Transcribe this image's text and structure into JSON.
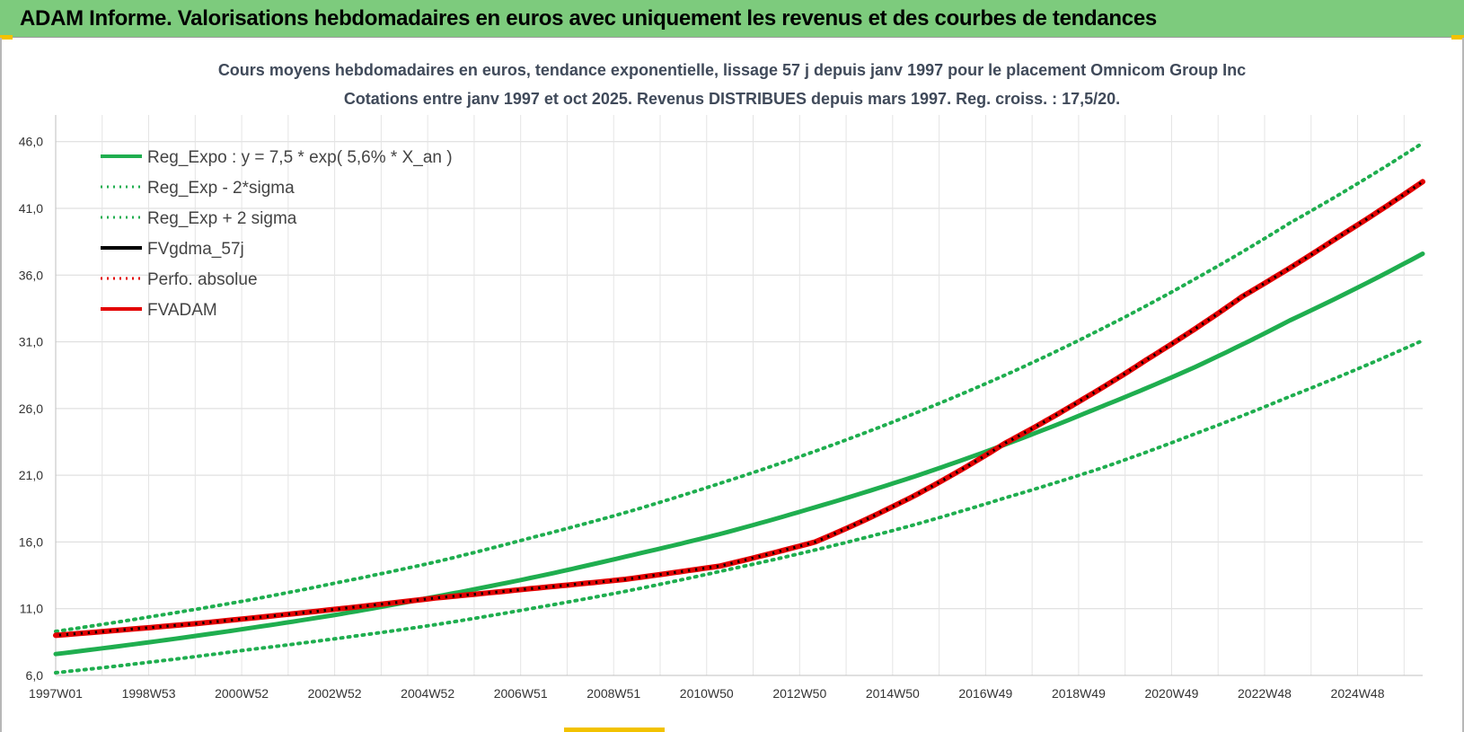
{
  "header": {
    "title": "ADAM Informe. Valorisations hebdomadaires en euros avec uniquement les revenus et des courbes de tendances"
  },
  "chart_data": {
    "type": "line",
    "title": "Cours moyens hebdomadaires en euros, tendance exponentielle, lissage 57 j depuis janv 1997 pour le placement Omnicom Group Inc",
    "subtitle": "Cotations entre janv 1997 et oct 2025. Revenus DISTRIBUES depuis mars 1997.  Reg. croiss. : 17,5/20.",
    "xlabel": "",
    "ylabel": "",
    "x_tick_labels": [
      "1997W01",
      "1998W53",
      "2000W52",
      "2002W52",
      "2004W52",
      "2006W51",
      "2008W51",
      "2010W50",
      "2012W50",
      "2014W50",
      "2016W49",
      "2018W49",
      "2020W49",
      "2022W48",
      "2024W48"
    ],
    "x_range": [
      1997.0,
      2025.8
    ],
    "ylim": [
      6.0,
      48.0
    ],
    "y_ticks": [
      6.0,
      11.0,
      16.0,
      21.0,
      26.0,
      31.0,
      36.0,
      41.0,
      46.0
    ],
    "y_tick_labels": [
      "6,0",
      "11,0",
      "16,0",
      "21,0",
      "26,0",
      "31,0",
      "36,0",
      "41,0",
      "46,0"
    ],
    "grid": true,
    "legend_position": "top-left",
    "series": [
      {
        "name": "Reg_Expo : y = 7,5 * exp( 5,6% *  X_an )",
        "color": "#1fae4f",
        "style": "solid",
        "x": [
          1997.0,
          1999.0,
          2001.0,
          2003.0,
          2005.0,
          2007.0,
          2009.0,
          2011.0,
          2013.0,
          2015.0,
          2017.0,
          2019.0,
          2021.0,
          2023.0,
          2025.8
        ],
        "y": [
          7.6,
          8.5,
          9.5,
          10.6,
          11.9,
          13.3,
          14.9,
          16.6,
          18.6,
          20.8,
          23.3,
          26.1,
          29.1,
          32.6,
          37.6
        ]
      },
      {
        "name": "Reg_Exp - 2*sigma",
        "color": "#1fae4f",
        "style": "dotted",
        "x": [
          1997.0,
          1999.0,
          2001.0,
          2003.0,
          2005.0,
          2007.0,
          2009.0,
          2011.0,
          2013.0,
          2015.0,
          2017.0,
          2019.0,
          2021.0,
          2023.0,
          2025.8
        ],
        "y": [
          6.2,
          7.0,
          7.9,
          8.8,
          9.8,
          11.0,
          12.3,
          13.8,
          15.4,
          17.2,
          19.3,
          21.5,
          24.1,
          26.9,
          31.1
        ]
      },
      {
        "name": "Reg_Exp + 2 sigma",
        "color": "#1fae4f",
        "style": "dotted",
        "x": [
          1997.0,
          1999.0,
          2001.0,
          2003.0,
          2005.0,
          2007.0,
          2009.0,
          2011.0,
          2013.0,
          2015.0,
          2017.0,
          2019.0,
          2021.0,
          2023.0,
          2025.8
        ],
        "y": [
          9.3,
          10.4,
          11.6,
          13.0,
          14.5,
          16.3,
          18.2,
          20.4,
          22.8,
          25.5,
          28.5,
          31.9,
          35.7,
          39.9,
          45.9
        ]
      },
      {
        "name": "FVgdma_57j",
        "color": "#000000",
        "style": "solid",
        "x": [
          1997.0,
          2000.0,
          2003.0,
          2005.0,
          2007.0,
          2009.0,
          2011.0,
          2013.0,
          2015.0,
          2017.0,
          2018.5,
          2020.0,
          2022.0,
          2024.0,
          2025.8
        ],
        "y": [
          9.0,
          9.9,
          11.0,
          11.8,
          12.5,
          13.2,
          14.2,
          16.0,
          19.3,
          23.4,
          26.4,
          29.7,
          34.4,
          38.8,
          43.0
        ]
      },
      {
        "name": "Perfo. absolue",
        "color": "#e30000",
        "style": "dotted",
        "x": [
          1997.0,
          2000.0,
          2003.0,
          2005.0,
          2007.0,
          2009.0,
          2011.0,
          2013.0,
          2015.0,
          2017.0,
          2018.5,
          2020.0,
          2022.0,
          2024.0,
          2025.8
        ],
        "y": [
          9.0,
          9.9,
          11.0,
          11.8,
          12.5,
          13.2,
          14.2,
          16.0,
          19.3,
          23.4,
          26.4,
          29.7,
          34.4,
          38.8,
          43.0
        ]
      },
      {
        "name": "FVADAM",
        "color": "#e30000",
        "style": "solid",
        "x": [
          1997.0,
          2000.0,
          2003.0,
          2005.0,
          2007.0,
          2009.0,
          2011.0,
          2013.0,
          2015.0,
          2017.0,
          2018.5,
          2020.0,
          2022.0,
          2024.0,
          2025.8
        ],
        "y": [
          9.0,
          9.9,
          11.0,
          11.8,
          12.5,
          13.2,
          14.2,
          16.0,
          19.3,
          23.4,
          26.4,
          29.7,
          34.4,
          38.8,
          43.0
        ]
      }
    ]
  }
}
